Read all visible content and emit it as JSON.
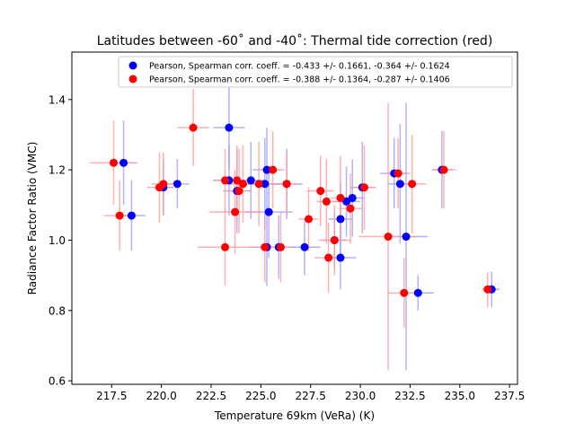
{
  "chart_data": {
    "type": "scatter",
    "title": "Latitudes between -60˚ and -40˚: Thermal tide correction (red)",
    "xlabel": "Temperature 69km (VeRa) (K)",
    "ylabel": "Radiance Factor Ratio (VMC)",
    "xlim": [
      215.5,
      237.9
    ],
    "ylim": [
      0.59,
      1.535
    ],
    "xticks": [
      217.5,
      220.0,
      222.5,
      225.0,
      227.5,
      230.0,
      232.5,
      235.0,
      237.5
    ],
    "xtick_labels": [
      "217.5",
      "220.0",
      "222.5",
      "225.0",
      "227.5",
      "230.0",
      "232.5",
      "235.0",
      "237.5"
    ],
    "yticks": [
      0.6,
      0.8,
      1.0,
      1.2,
      1.4
    ],
    "ytick_labels": [
      "0.6",
      "0.8",
      "1.0",
      "1.2",
      "1.4"
    ],
    "grid": false,
    "legend": "top-right",
    "series": [
      {
        "name": "Pearson, Spearman corr. coeff. = -0.433 +/-  0.1661, -0.364 +/-  0.1624",
        "color": "#0000ff",
        "errcolor": "#9999ff",
        "points": [
          {
            "x": 218.1,
            "y": 1.22,
            "xerr": 0.6,
            "yerr": 0.12
          },
          {
            "x": 218.5,
            "y": 1.07,
            "xerr": 0.7,
            "yerr": 0.1
          },
          {
            "x": 220.1,
            "y": 1.15,
            "xerr": 0.5,
            "yerr": 0.08
          },
          {
            "x": 220.8,
            "y": 1.16,
            "xerr": 0.6,
            "yerr": 0.07
          },
          {
            "x": 223.4,
            "y": 1.32,
            "xerr": 0.8,
            "yerr": 0.12
          },
          {
            "x": 223.4,
            "y": 1.17,
            "xerr": 0.8,
            "yerr": 0.1
          },
          {
            "x": 223.8,
            "y": 1.14,
            "xerr": 0.7,
            "yerr": 0.12
          },
          {
            "x": 224.5,
            "y": 1.17,
            "xerr": 0.8,
            "yerr": 0.11
          },
          {
            "x": 225.2,
            "y": 1.16,
            "xerr": 0.9,
            "yerr": 0.13
          },
          {
            "x": 225.3,
            "y": 1.2,
            "xerr": 0.7,
            "yerr": 0.12
          },
          {
            "x": 225.3,
            "y": 0.98,
            "xerr": 0.9,
            "yerr": 0.11
          },
          {
            "x": 225.4,
            "y": 1.08,
            "xerr": 1.2,
            "yerr": 0.13
          },
          {
            "x": 225.9,
            "y": 0.98,
            "xerr": 0.8,
            "yerr": 0.09
          },
          {
            "x": 226.3,
            "y": 1.16,
            "xerr": 0.8,
            "yerr": 0.1
          },
          {
            "x": 227.2,
            "y": 0.98,
            "xerr": 0.8,
            "yerr": 0.08
          },
          {
            "x": 228.7,
            "y": 1.0,
            "xerr": 0.6,
            "yerr": 0.08
          },
          {
            "x": 229.0,
            "y": 1.06,
            "xerr": 0.6,
            "yerr": 0.1
          },
          {
            "x": 229.0,
            "y": 0.95,
            "xerr": 0.8,
            "yerr": 0.09
          },
          {
            "x": 229.3,
            "y": 1.11,
            "xerr": 0.7,
            "yerr": 0.1
          },
          {
            "x": 229.6,
            "y": 1.12,
            "xerr": 0.6,
            "yerr": 0.11
          },
          {
            "x": 230.1,
            "y": 1.15,
            "xerr": 0.6,
            "yerr": 0.13
          },
          {
            "x": 231.7,
            "y": 1.19,
            "xerr": 0.7,
            "yerr": 0.1
          },
          {
            "x": 232.0,
            "y": 1.16,
            "xerr": 0.6,
            "yerr": 0.17
          },
          {
            "x": 232.3,
            "y": 1.01,
            "xerr": 1.1,
            "yerr": 0.38
          },
          {
            "x": 232.9,
            "y": 0.85,
            "xerr": 0.8,
            "yerr": 0.05
          },
          {
            "x": 234.1,
            "y": 1.2,
            "xerr": 0.5,
            "yerr": 0.11
          },
          {
            "x": 236.6,
            "y": 0.86,
            "xerr": 0.4,
            "yerr": 0.05
          }
        ]
      },
      {
        "name": "Pearson, Spearman corr. coeff. = -0.388 +/-  0.1364, -0.287 +/-  0.1406",
        "color": "#ff0000",
        "errcolor": "#ff9999",
        "points": [
          {
            "x": 217.6,
            "y": 1.22,
            "xerr": 1.2,
            "yerr": 0.12
          },
          {
            "x": 217.9,
            "y": 1.07,
            "xerr": 0.8,
            "yerr": 0.1
          },
          {
            "x": 219.9,
            "y": 1.15,
            "xerr": 0.6,
            "yerr": 0.1
          },
          {
            "x": 220.1,
            "y": 1.16,
            "xerr": 0.6,
            "yerr": 0.09
          },
          {
            "x": 221.6,
            "y": 1.32,
            "xerr": 0.8,
            "yerr": 0.11
          },
          {
            "x": 223.2,
            "y": 1.17,
            "xerr": 0.6,
            "yerr": 0.09
          },
          {
            "x": 223.2,
            "y": 0.98,
            "xerr": 1.4,
            "yerr": 0.11
          },
          {
            "x": 223.7,
            "y": 1.08,
            "xerr": 1.3,
            "yerr": 0.12
          },
          {
            "x": 223.8,
            "y": 1.17,
            "xerr": 0.8,
            "yerr": 0.1
          },
          {
            "x": 223.9,
            "y": 1.14,
            "xerr": 0.6,
            "yerr": 0.12
          },
          {
            "x": 224.1,
            "y": 1.16,
            "xerr": 0.8,
            "yerr": 0.11
          },
          {
            "x": 224.9,
            "y": 1.16,
            "xerr": 0.8,
            "yerr": 0.12
          },
          {
            "x": 225.2,
            "y": 0.98,
            "xerr": 0.7,
            "yerr": 0.1
          },
          {
            "x": 225.6,
            "y": 1.2,
            "xerr": 0.6,
            "yerr": 0.11
          },
          {
            "x": 226.0,
            "y": 0.98,
            "xerr": 0.6,
            "yerr": 0.1
          },
          {
            "x": 226.3,
            "y": 1.16,
            "xerr": 0.6,
            "yerr": 0.09
          },
          {
            "x": 227.4,
            "y": 1.06,
            "xerr": 0.5,
            "yerr": 0.09
          },
          {
            "x": 228.0,
            "y": 1.14,
            "xerr": 0.7,
            "yerr": 0.1
          },
          {
            "x": 228.3,
            "y": 1.11,
            "xerr": 0.5,
            "yerr": 0.12
          },
          {
            "x": 228.4,
            "y": 0.95,
            "xerr": 0.7,
            "yerr": 0.1
          },
          {
            "x": 228.7,
            "y": 1.0,
            "xerr": 0.8,
            "yerr": 0.1
          },
          {
            "x": 229.0,
            "y": 1.12,
            "xerr": 0.5,
            "yerr": 0.12
          },
          {
            "x": 229.5,
            "y": 1.09,
            "xerr": 0.6,
            "yerr": 0.1
          },
          {
            "x": 230.2,
            "y": 1.15,
            "xerr": 0.6,
            "yerr": 0.12
          },
          {
            "x": 231.4,
            "y": 1.01,
            "xerr": 1.5,
            "yerr": 0.38
          },
          {
            "x": 231.9,
            "y": 1.19,
            "xerr": 0.6,
            "yerr": 0.1
          },
          {
            "x": 232.2,
            "y": 0.85,
            "xerr": 0.8,
            "yerr": 0.1
          },
          {
            "x": 232.6,
            "y": 1.16,
            "xerr": 0.7,
            "yerr": 0.14
          },
          {
            "x": 234.2,
            "y": 1.2,
            "xerr": 0.6,
            "yerr": 0.11
          },
          {
            "x": 236.4,
            "y": 0.86,
            "xerr": 0.3,
            "yerr": 0.05
          }
        ]
      }
    ]
  }
}
